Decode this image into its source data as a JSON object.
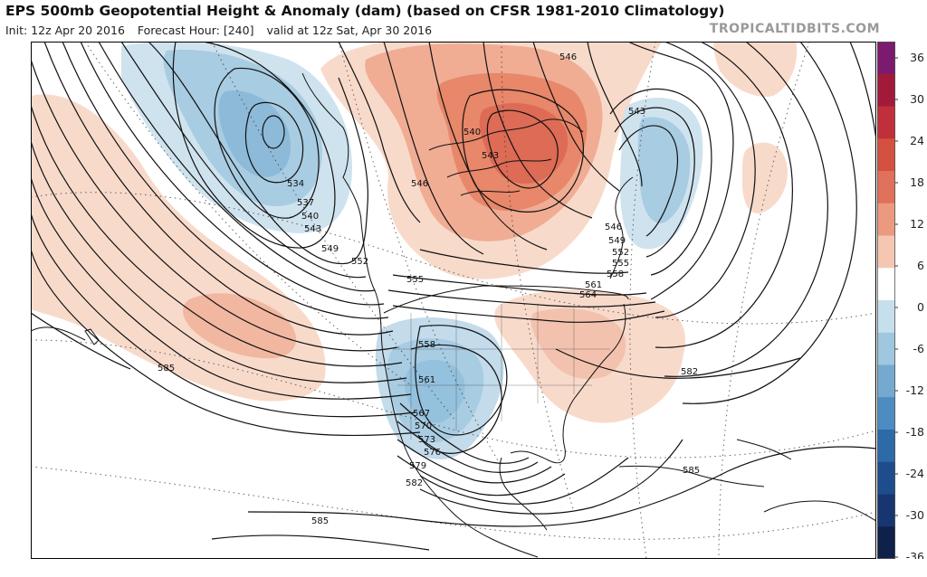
{
  "header": {
    "title": "EPS 500mb Geopotential Height & Anomaly (dam) (based on CFSR 1981-2010 Climatology)",
    "init": "Init: 12z Apr 20 2016",
    "forecast_hour": "Forecast Hour: [240]",
    "valid": "valid at 12z Sat, Apr 30 2016",
    "brand": "TROPICALTIDBITS.COM"
  },
  "colorbar": {
    "labels": [
      "36",
      "30",
      "24",
      "18",
      "12",
      "6",
      "0",
      "-6",
      "-12",
      "-18",
      "-24",
      "-30",
      "-36"
    ],
    "colors": [
      "#7b1a6f",
      "#a21a3a",
      "#c0303a",
      "#d4503f",
      "#e0715a",
      "#eb9a80",
      "#f5c7b3",
      "#ffffff",
      "#c6dfec",
      "#9fc7df",
      "#74aad0",
      "#4d8cc0",
      "#2d6aa8",
      "#1e4d8e",
      "#17366f",
      "#0e2148"
    ]
  },
  "contour_labels": [
    {
      "text": "534"
    },
    {
      "text": "537"
    },
    {
      "text": "540"
    },
    {
      "text": "543"
    },
    {
      "text": "546"
    },
    {
      "text": "549"
    },
    {
      "text": "552"
    },
    {
      "text": "555"
    },
    {
      "text": "540"
    },
    {
      "text": "543"
    },
    {
      "text": "546"
    },
    {
      "text": "543"
    },
    {
      "text": "546"
    },
    {
      "text": "549"
    },
    {
      "text": "552"
    },
    {
      "text": "555"
    },
    {
      "text": "558"
    },
    {
      "text": "561"
    },
    {
      "text": "564"
    },
    {
      "text": "558"
    },
    {
      "text": "561"
    },
    {
      "text": "567"
    },
    {
      "text": "570"
    },
    {
      "text": "573"
    },
    {
      "text": "576"
    },
    {
      "text": "579"
    },
    {
      "text": "582"
    },
    {
      "text": "582"
    },
    {
      "text": "585"
    },
    {
      "text": "585"
    },
    {
      "text": "585"
    }
  ]
}
